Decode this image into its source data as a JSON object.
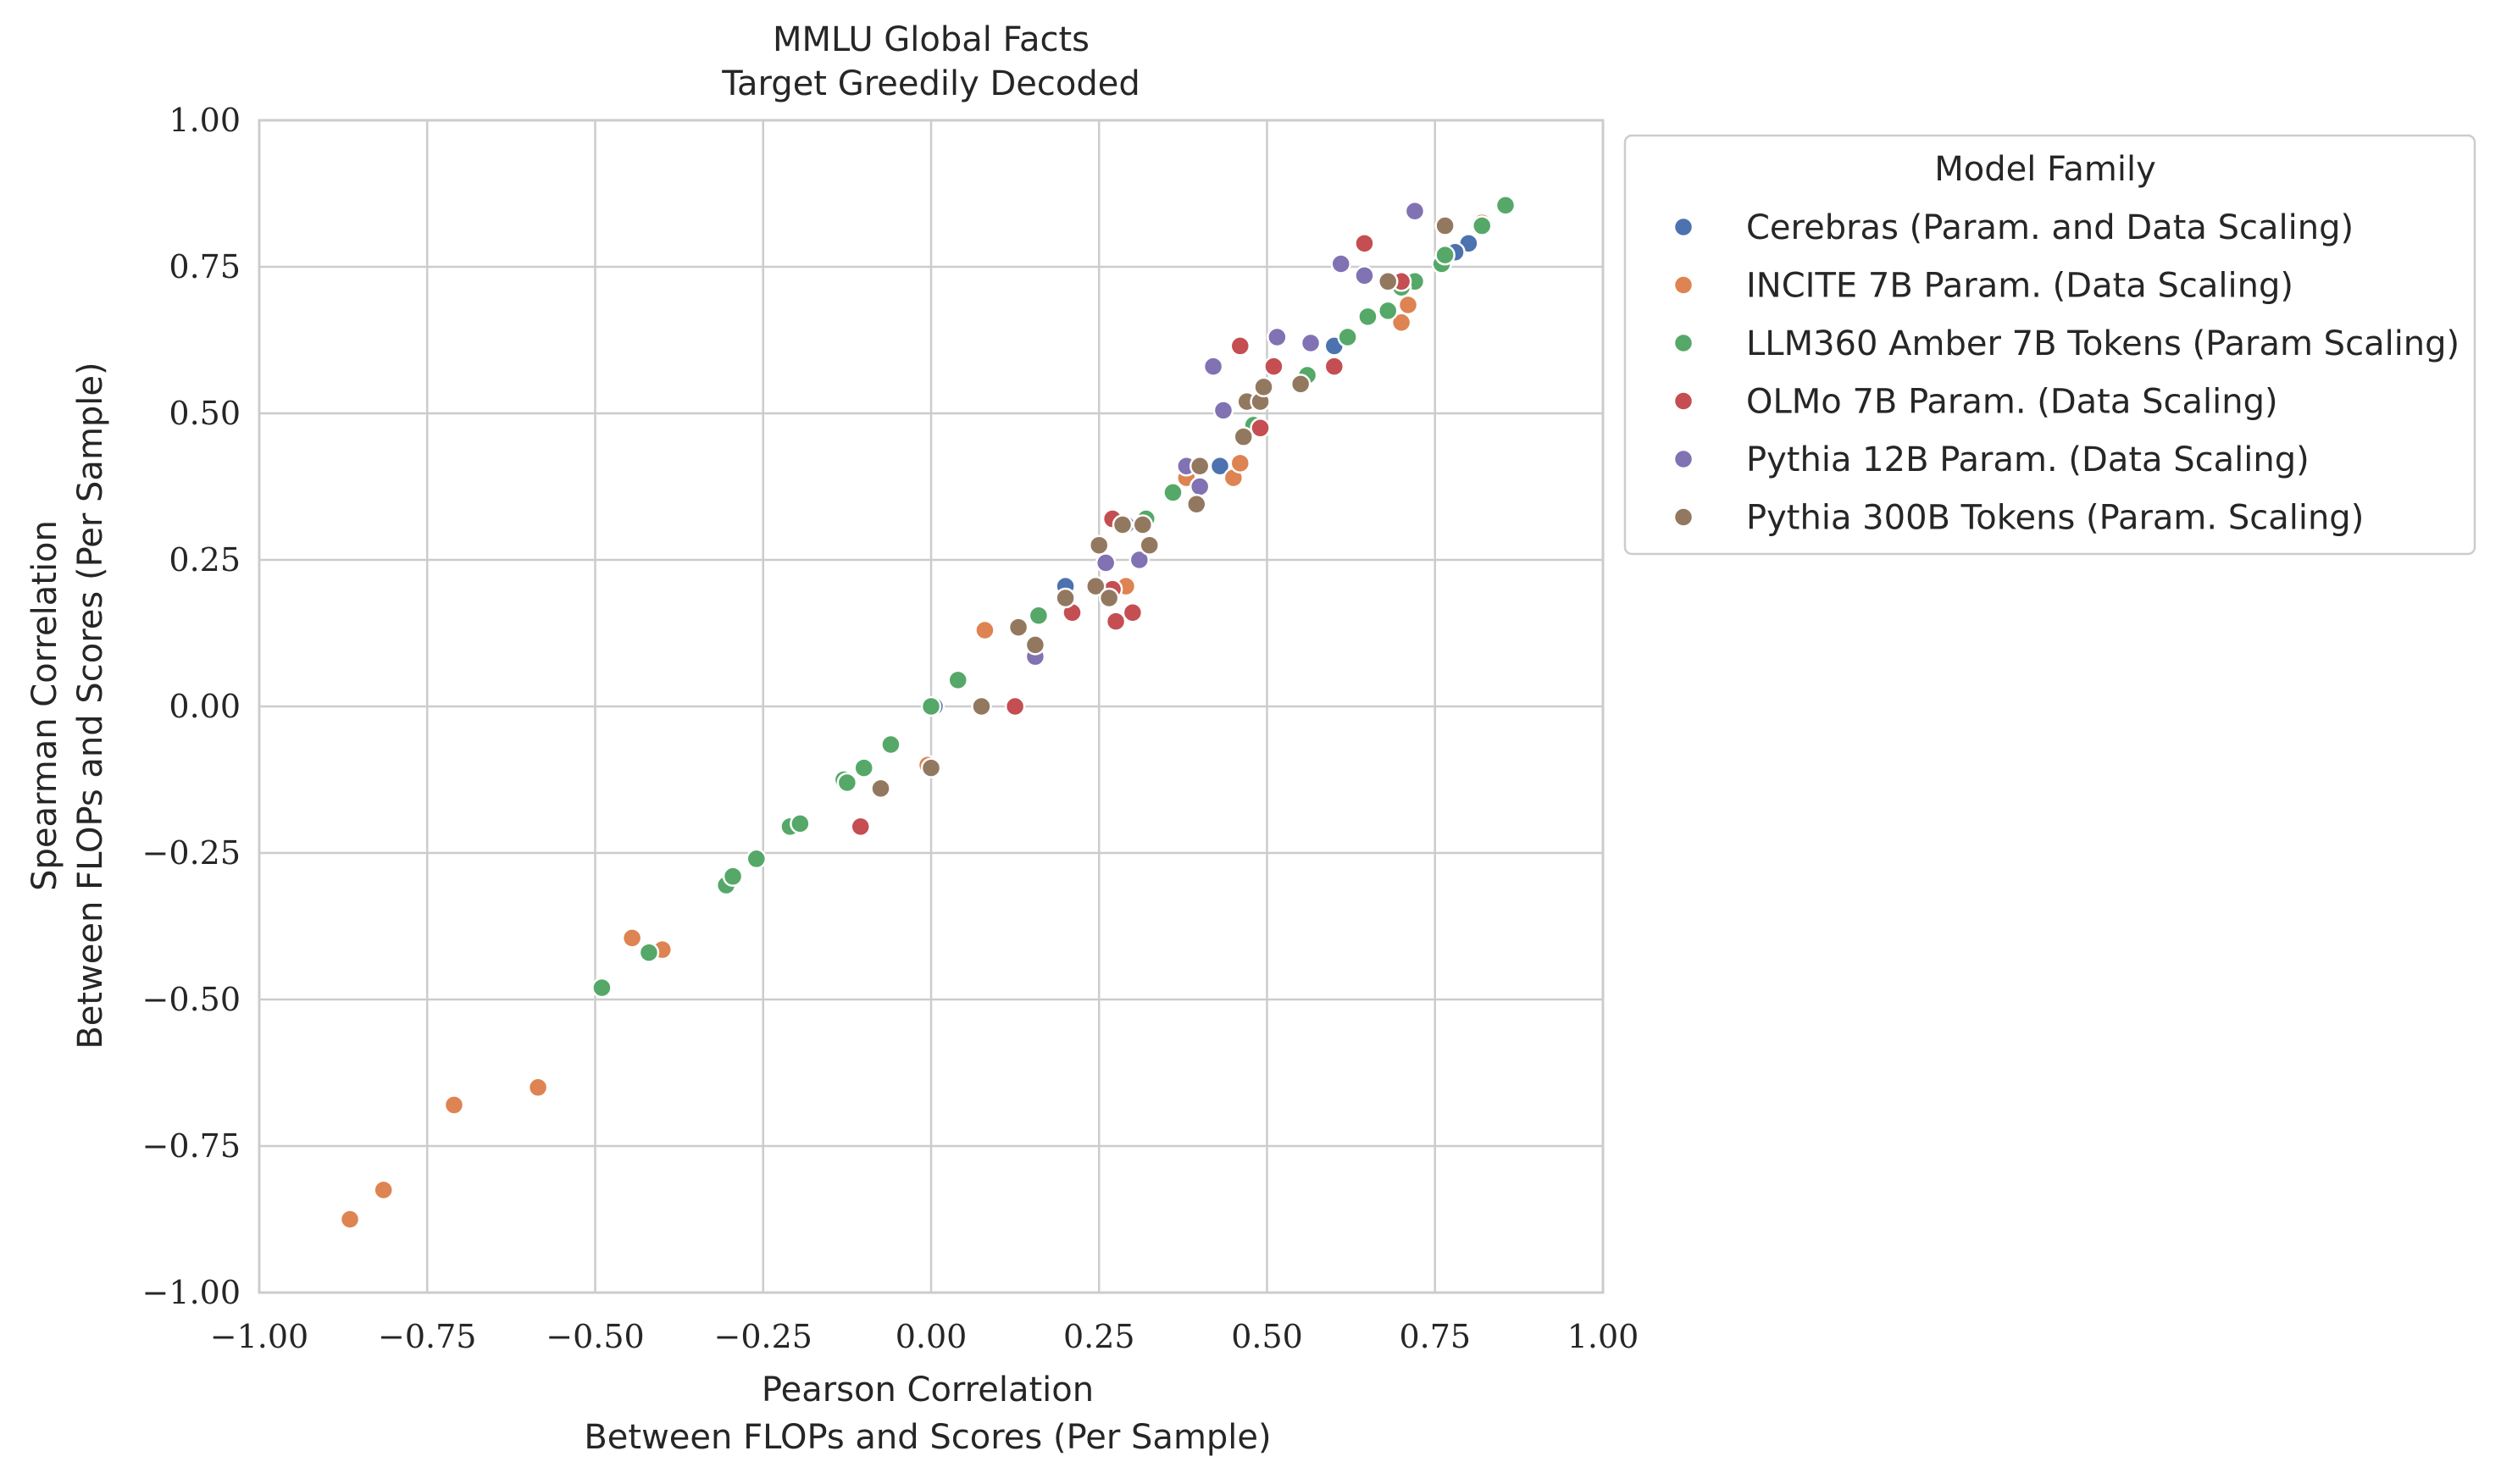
{
  "chart_data": {
    "type": "scatter",
    "title": [
      "MMLU Global Facts",
      "Target Greedily Decoded"
    ],
    "xlabel": [
      "Pearson Correlation",
      "Between FLOPs and Scores (Per Sample)"
    ],
    "ylabel": [
      "Spearman Correlation",
      "Between FLOPs and Scores (Per Sample)"
    ],
    "xlim": [
      -1.0,
      1.0
    ],
    "ylim": [
      -1.0,
      1.0
    ],
    "xticks": [
      "−1.00",
      "−0.75",
      "−0.50",
      "−0.25",
      "0.00",
      "0.25",
      "0.50",
      "0.75",
      "1.00"
    ],
    "yticks": [
      "−1.00",
      "−0.75",
      "−0.50",
      "−0.25",
      "0.00",
      "0.25",
      "0.50",
      "0.75",
      "1.00"
    ],
    "xtick_values": [
      -1.0,
      -0.75,
      -0.5,
      -0.25,
      0.0,
      0.25,
      0.5,
      0.75,
      1.0
    ],
    "ytick_values": [
      -1.0,
      -0.75,
      -0.5,
      -0.25,
      0.0,
      0.25,
      0.5,
      0.75,
      1.0
    ],
    "grid": true,
    "legend": {
      "title": "Model Family",
      "placement": "outside-right-top"
    },
    "series": [
      {
        "name": "Cerebras (Param. and Data Scaling)",
        "color": "#4c72b0",
        "points": [
          [
            0.2,
            0.205
          ],
          [
            0.43,
            0.41
          ],
          [
            0.6,
            0.615
          ],
          [
            0.8,
            0.79
          ],
          [
            0.78,
            0.775
          ],
          [
            0.005,
            0.0
          ],
          [
            0.29,
            0.31
          ]
        ]
      },
      {
        "name": "INCITE 7B Param. (Data Scaling)",
        "color": "#dd8452",
        "points": [
          [
            -0.865,
            -0.875
          ],
          [
            -0.815,
            -0.825
          ],
          [
            -0.71,
            -0.68
          ],
          [
            -0.585,
            -0.65
          ],
          [
            -0.445,
            -0.395
          ],
          [
            -0.4,
            -0.415
          ],
          [
            0.08,
            0.13
          ],
          [
            -0.005,
            -0.1
          ],
          [
            0.29,
            0.205
          ],
          [
            0.45,
            0.39
          ],
          [
            0.46,
            0.415
          ],
          [
            0.38,
            0.39
          ],
          [
            0.7,
            0.655
          ],
          [
            0.71,
            0.685
          ],
          [
            0.82,
            0.825
          ]
        ]
      },
      {
        "name": "LLM360 Amber 7B Tokens (Param Scaling)",
        "color": "#55a868",
        "points": [
          [
            -0.49,
            -0.48
          ],
          [
            -0.42,
            -0.42
          ],
          [
            -0.305,
            -0.305
          ],
          [
            -0.295,
            -0.29
          ],
          [
            -0.26,
            -0.26
          ],
          [
            -0.21,
            -0.205
          ],
          [
            -0.195,
            -0.2
          ],
          [
            -0.13,
            -0.125
          ],
          [
            -0.125,
            -0.13
          ],
          [
            -0.1,
            -0.105
          ],
          [
            -0.06,
            -0.065
          ],
          [
            0.0,
            0.0
          ],
          [
            0.04,
            0.045
          ],
          [
            0.13,
            0.135
          ],
          [
            0.16,
            0.155
          ],
          [
            0.36,
            0.365
          ],
          [
            0.32,
            0.32
          ],
          [
            0.48,
            0.48
          ],
          [
            0.56,
            0.565
          ],
          [
            0.62,
            0.63
          ],
          [
            0.65,
            0.665
          ],
          [
            0.68,
            0.675
          ],
          [
            0.72,
            0.725
          ],
          [
            0.76,
            0.755
          ],
          [
            0.765,
            0.77
          ],
          [
            0.82,
            0.82
          ],
          [
            0.855,
            0.855
          ],
          [
            0.7,
            0.715
          ]
        ]
      },
      {
        "name": "OLMo 7B Param. (Data Scaling)",
        "color": "#c44e52",
        "points": [
          [
            -0.105,
            -0.205
          ],
          [
            0.125,
            0.0
          ],
          [
            0.21,
            0.16
          ],
          [
            0.27,
            0.32
          ],
          [
            0.275,
            0.145
          ],
          [
            0.3,
            0.16
          ],
          [
            0.27,
            0.2
          ],
          [
            0.46,
            0.615
          ],
          [
            0.49,
            0.475
          ],
          [
            0.51,
            0.58
          ],
          [
            0.6,
            0.58
          ],
          [
            0.645,
            0.79
          ],
          [
            0.7,
            0.725
          ]
        ]
      },
      {
        "name": "Pythia 12B Param. (Data Scaling)",
        "color": "#8172b3",
        "points": [
          [
            0.155,
            0.085
          ],
          [
            0.26,
            0.245
          ],
          [
            0.31,
            0.25
          ],
          [
            0.38,
            0.41
          ],
          [
            0.4,
            0.375
          ],
          [
            0.42,
            0.58
          ],
          [
            0.435,
            0.505
          ],
          [
            0.515,
            0.63
          ],
          [
            0.565,
            0.62
          ],
          [
            0.61,
            0.755
          ],
          [
            0.645,
            0.735
          ],
          [
            0.72,
            0.845
          ]
        ]
      },
      {
        "name": "Pythia 300B Tokens (Param. Scaling)",
        "color": "#937860",
        "points": [
          [
            -0.075,
            -0.14
          ],
          [
            0.0,
            -0.105
          ],
          [
            0.075,
            0.0
          ],
          [
            0.13,
            0.135
          ],
          [
            0.155,
            0.105
          ],
          [
            0.2,
            0.185
          ],
          [
            0.25,
            0.275
          ],
          [
            0.245,
            0.205
          ],
          [
            0.265,
            0.185
          ],
          [
            0.285,
            0.31
          ],
          [
            0.315,
            0.31
          ],
          [
            0.325,
            0.275
          ],
          [
            0.395,
            0.345
          ],
          [
            0.4,
            0.41
          ],
          [
            0.465,
            0.46
          ],
          [
            0.47,
            0.52
          ],
          [
            0.49,
            0.52
          ],
          [
            0.495,
            0.545
          ],
          [
            0.55,
            0.55
          ],
          [
            0.68,
            0.725
          ],
          [
            0.765,
            0.82
          ]
        ]
      }
    ]
  }
}
